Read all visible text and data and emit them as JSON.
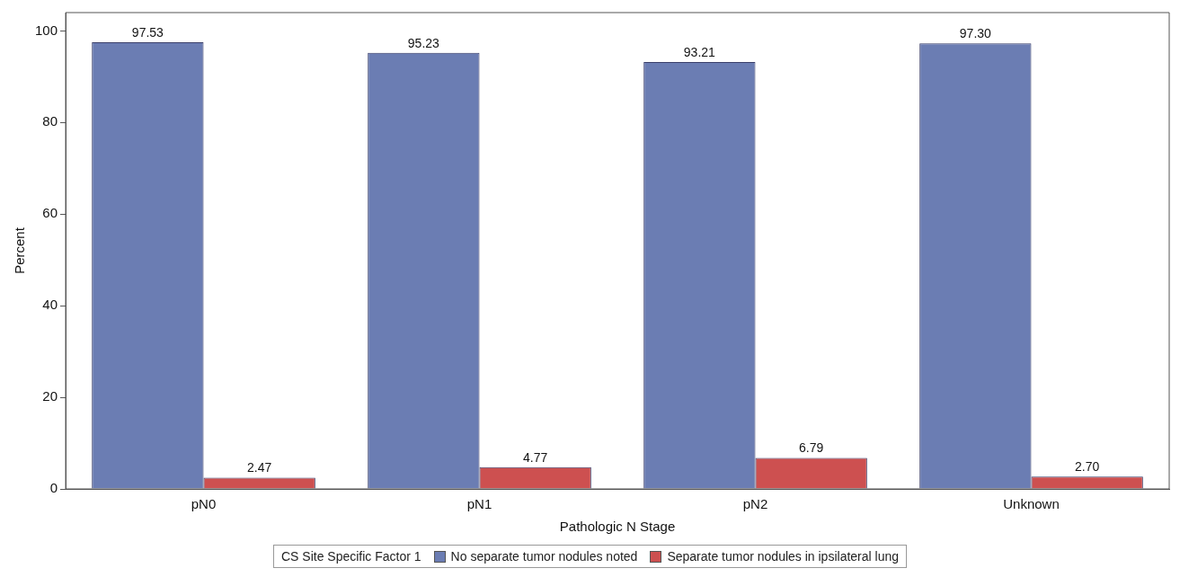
{
  "chart_data": {
    "type": "bar",
    "categories": [
      "pN0",
      "pN1",
      "pN2",
      "Unknown"
    ],
    "series": [
      {
        "name": "No separate tumor nodules noted",
        "color": "#6b7db3",
        "values": [
          97.53,
          95.23,
          93.21,
          97.3
        ],
        "value_labels": [
          "97.53",
          "95.23",
          "93.21",
          "97.30"
        ]
      },
      {
        "name": "Separate tumor nodules in ipsilateral lung",
        "color": "#cd5050",
        "values": [
          2.47,
          4.77,
          6.79,
          2.7
        ],
        "value_labels": [
          "2.47",
          "4.77",
          "6.79",
          "2.70"
        ]
      }
    ],
    "xlabel": "Pathologic N Stage",
    "ylabel": "Percent",
    "legend_title": "CS Site Specific Factor 1",
    "ylim": [
      0,
      104
    ],
    "yticks": [
      0,
      20,
      40,
      60,
      80,
      100
    ],
    "grid": false,
    "legend": "bottom"
  }
}
